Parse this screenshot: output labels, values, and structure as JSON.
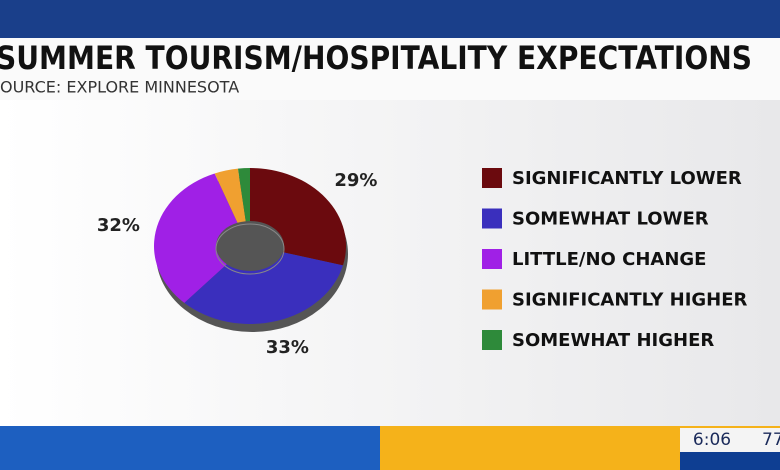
{
  "chart_data": {
    "type": "pie",
    "donut": true,
    "title": "SUMMER TOURISM/HOSPITALITY EXPECTATIONS",
    "subtitle": "OURCE: EXPLORE MINNESOTA",
    "categories": [
      "SIGNIFICANTLY LOWER",
      "SOMEWHAT LOWER",
      "LITTLE/NO CHANGE",
      "SIGNIFICANTLY HIGHER",
      "SOMEWHAT HIGHER"
    ],
    "values": [
      29,
      33,
      32,
      4,
      2
    ],
    "value_labels": [
      "29%",
      "33%",
      "32%",
      null,
      null
    ],
    "colors": [
      "#6b0a0e",
      "#3a2fbd",
      "#a020e6",
      "#f0a030",
      "#2e8a3a"
    ],
    "legend": "right"
  },
  "overlay": {
    "time": "6:06",
    "temperature": "77"
  }
}
